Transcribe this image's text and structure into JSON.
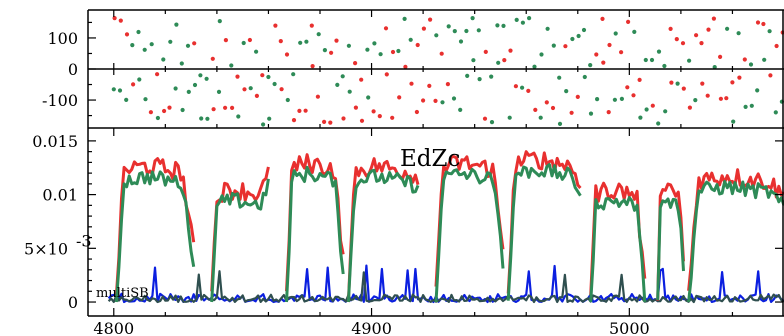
{
  "chart_data": [
    {
      "type": "scatter",
      "panel": "top",
      "xlim": [
        4790,
        5060
      ],
      "ylim": [
        -190,
        190
      ],
      "ytick_labels": [
        "100",
        "0",
        "-100"
      ],
      "yticks": [
        100,
        0,
        -100
      ],
      "colors": {
        "a": "#e8302f",
        "b": "#2e8b57"
      },
      "x_start": 4800,
      "x_step": 2.4,
      "series": [
        {
          "color_key": "a",
          "label_text": ""
        },
        {
          "color_key": "b",
          "label_text": ""
        }
      ]
    },
    {
      "type": "line",
      "panel": "bottom",
      "title": "EdZc",
      "annotation": "multiSB",
      "xlim": [
        4790,
        5060
      ],
      "ylim": [
        -0.0013,
        0.0162
      ],
      "xticks": [
        4800,
        4900,
        5000
      ],
      "xtick_labels": [
        "4800",
        "4900",
        "5000"
      ],
      "yticks": [
        0,
        0.005,
        0.01,
        0.015
      ],
      "ytick_labels": [
        "0",
        "5×10",
        "0.01",
        "0.015"
      ],
      "ytick_exponent": "-3",
      "colors": {
        "red": "#e8302f",
        "green": "#2e8b57",
        "blue": "#0b1fe0",
        "darkgray": "#2f4f4f"
      },
      "segments": [
        {
          "x0": 4801,
          "x1": 4831,
          "peak": 0.0125,
          "end": 0.004
        },
        {
          "x0": 4838,
          "x1": 4860,
          "peak": 0.0102,
          "end": 0.011
        },
        {
          "x0": 4867,
          "x1": 4889,
          "peak": 0.0128,
          "end": 0.003
        },
        {
          "x0": 4891,
          "x1": 4918,
          "peak": 0.0125,
          "end": 0.011
        },
        {
          "x0": 4925,
          "x1": 4951,
          "peak": 0.0128,
          "end": 0.004
        },
        {
          "x0": 4953,
          "x1": 4981,
          "peak": 0.0132,
          "end": 0.0105
        },
        {
          "x0": 4985,
          "x1": 5006,
          "peak": 0.0102,
          "end": 0.0005
        },
        {
          "x0": 5011,
          "x1": 5021,
          "peak": 0.01,
          "end": 0.003
        },
        {
          "x0": 5023,
          "x1": 5060,
          "peak": 0.0115,
          "end": 0.009
        }
      ]
    }
  ]
}
